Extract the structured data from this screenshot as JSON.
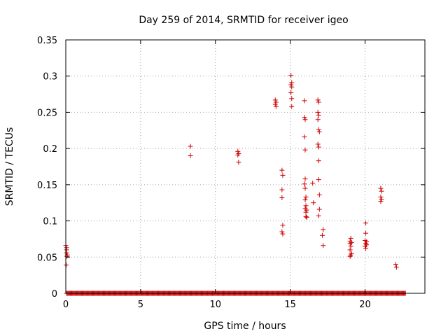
{
  "chart_data": {
    "type": "scatter",
    "title": "Day 259 of 2014, SRMTID for receiver igeo",
    "xlabel": "GPS time / hours",
    "ylabel": "SRMTID / TECUs",
    "xlim": [
      0,
      24
    ],
    "ylim": [
      0,
      0.35
    ],
    "xticks": [
      0,
      5,
      10,
      15,
      20
    ],
    "yticks": [
      0,
      0.05,
      0.1,
      0.15,
      0.2,
      0.25,
      0.3,
      0.35
    ],
    "xtick_labels": [
      "0",
      "5",
      "10",
      "15",
      "20"
    ],
    "ytick_labels": [
      "0",
      "0.05",
      "0.1",
      "0.15",
      "0.2",
      "0.25",
      "0.3",
      "0.35"
    ],
    "grid": true,
    "marker": "+",
    "color": "#cc0000",
    "series": [
      {
        "name": "SRMTID",
        "points": [
          [
            0.0,
            0.066
          ],
          [
            0.05,
            0.063
          ],
          [
            0.05,
            0.06
          ],
          [
            0.05,
            0.056
          ],
          [
            0.1,
            0.053
          ],
          [
            0.08,
            0.051
          ],
          [
            0.03,
            0.039
          ],
          [
            8.33,
            0.203
          ],
          [
            8.33,
            0.19
          ],
          [
            11.5,
            0.196
          ],
          [
            11.55,
            0.193
          ],
          [
            11.5,
            0.191
          ],
          [
            11.55,
            0.181
          ],
          [
            14.0,
            0.267
          ],
          [
            14.05,
            0.264
          ],
          [
            14.0,
            0.261
          ],
          [
            14.05,
            0.258
          ],
          [
            14.45,
            0.17
          ],
          [
            14.5,
            0.163
          ],
          [
            14.45,
            0.143
          ],
          [
            14.45,
            0.132
          ],
          [
            14.5,
            0.094
          ],
          [
            14.45,
            0.085
          ],
          [
            14.5,
            0.082
          ],
          [
            15.05,
            0.301
          ],
          [
            15.1,
            0.291
          ],
          [
            15.05,
            0.288
          ],
          [
            15.1,
            0.285
          ],
          [
            15.05,
            0.277
          ],
          [
            15.1,
            0.269
          ],
          [
            15.1,
            0.258
          ],
          [
            15.95,
            0.266
          ],
          [
            15.95,
            0.243
          ],
          [
            16.0,
            0.24
          ],
          [
            15.95,
            0.216
          ],
          [
            16.0,
            0.198
          ],
          [
            16.0,
            0.158
          ],
          [
            15.95,
            0.151
          ],
          [
            16.0,
            0.145
          ],
          [
            16.05,
            0.133
          ],
          [
            16.0,
            0.129
          ],
          [
            16.05,
            0.121
          ],
          [
            16.0,
            0.117
          ],
          [
            16.1,
            0.115
          ],
          [
            16.05,
            0.112
          ],
          [
            16.05,
            0.106
          ],
          [
            16.1,
            0.105
          ],
          [
            16.5,
            0.152
          ],
          [
            16.55,
            0.125
          ],
          [
            16.85,
            0.267
          ],
          [
            16.9,
            0.264
          ],
          [
            16.85,
            0.25
          ],
          [
            16.9,
            0.246
          ],
          [
            16.85,
            0.24
          ],
          [
            16.9,
            0.226
          ],
          [
            16.95,
            0.223
          ],
          [
            16.85,
            0.206
          ],
          [
            16.9,
            0.202
          ],
          [
            16.9,
            0.183
          ],
          [
            16.9,
            0.157
          ],
          [
            16.95,
            0.136
          ],
          [
            16.95,
            0.116
          ],
          [
            16.9,
            0.107
          ],
          [
            17.2,
            0.088
          ],
          [
            17.15,
            0.08
          ],
          [
            17.2,
            0.066
          ],
          [
            19.05,
            0.076
          ],
          [
            19.0,
            0.072
          ],
          [
            19.1,
            0.07
          ],
          [
            19.0,
            0.069
          ],
          [
            19.05,
            0.065
          ],
          [
            19.0,
            0.06
          ],
          [
            19.1,
            0.055
          ],
          [
            19.05,
            0.053
          ],
          [
            19.0,
            0.051
          ],
          [
            20.05,
            0.097
          ],
          [
            20.05,
            0.083
          ],
          [
            20.0,
            0.073
          ],
          [
            20.1,
            0.071
          ],
          [
            20.05,
            0.069
          ],
          [
            20.1,
            0.067
          ],
          [
            20.0,
            0.065
          ],
          [
            20.05,
            0.062
          ],
          [
            21.05,
            0.145
          ],
          [
            21.1,
            0.141
          ],
          [
            21.05,
            0.133
          ],
          [
            21.1,
            0.13
          ],
          [
            21.05,
            0.127
          ],
          [
            22.05,
            0.04
          ],
          [
            22.1,
            0.036
          ]
        ]
      }
    ],
    "baseline_zero_ranges": [
      [
        0.05,
        22.7
      ]
    ]
  }
}
